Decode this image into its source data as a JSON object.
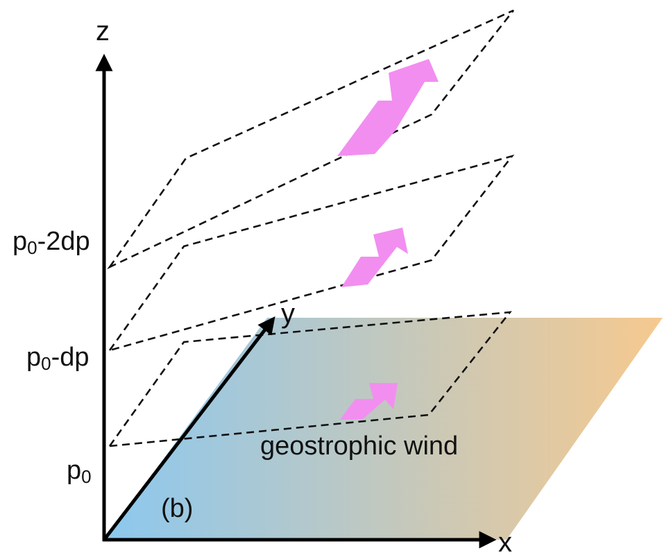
{
  "diagram": {
    "axes": {
      "z": "z",
      "y": "y",
      "x": "x"
    },
    "levels": [
      {
        "label_main": "p",
        "label_sub": "0",
        "label_rest": ""
      },
      {
        "label_main": "p",
        "label_sub": "0",
        "label_rest": "-dp"
      },
      {
        "label_main": "p",
        "label_sub": "0",
        "label_rest": "-2dp"
      }
    ],
    "annotation": "geostrophic wind",
    "panel_tag": "(b)",
    "colors": {
      "ground_left": "#8cc8ef",
      "ground_right": "#f6c98f",
      "wind_arrow": "#f28ef0",
      "lines": "#111111"
    }
  }
}
